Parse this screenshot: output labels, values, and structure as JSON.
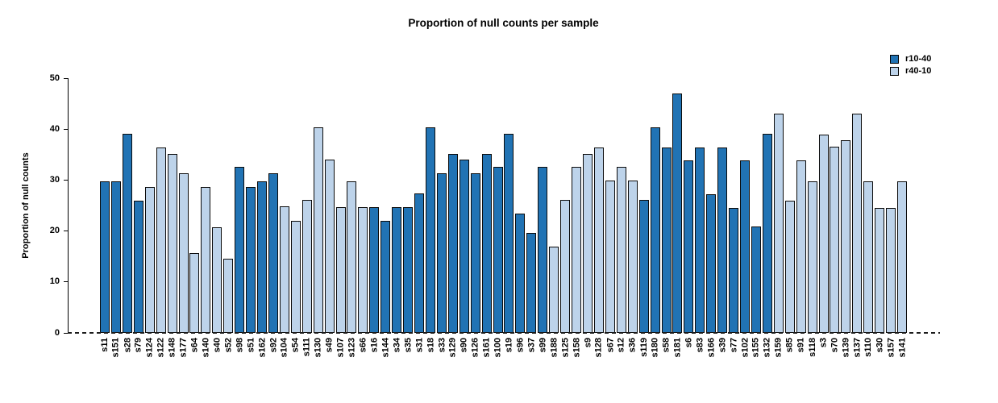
{
  "chart_data": {
    "type": "bar",
    "title": "Proportion of null counts per sample",
    "xlabel": "",
    "ylabel": "Proportion of null counts",
    "ylim": [
      0,
      50
    ],
    "yticks": [
      0,
      10,
      20,
      30,
      40,
      50
    ],
    "grid": false,
    "legend_position": "top-right",
    "legend": [
      {
        "name": "r10-40",
        "color": "#2173B4"
      },
      {
        "name": "r40-10",
        "color": "#BDD3EA"
      }
    ],
    "bars": [
      {
        "label": "s11",
        "value": 29.8,
        "series": "r10-40"
      },
      {
        "label": "s151",
        "value": 29.8,
        "series": "r10-40"
      },
      {
        "label": "s28",
        "value": 39.2,
        "series": "r10-40"
      },
      {
        "label": "s79",
        "value": 26.0,
        "series": "r10-40"
      },
      {
        "label": "s124",
        "value": 28.7,
        "series": "r40-10"
      },
      {
        "label": "s122",
        "value": 36.5,
        "series": "r40-10"
      },
      {
        "label": "s148",
        "value": 35.2,
        "series": "r40-10"
      },
      {
        "label": "s177",
        "value": 31.4,
        "series": "r40-10"
      },
      {
        "label": "s64",
        "value": 15.7,
        "series": "r40-10"
      },
      {
        "label": "s140",
        "value": 28.7,
        "series": "r40-10"
      },
      {
        "label": "s40",
        "value": 20.8,
        "series": "r40-10"
      },
      {
        "label": "s52",
        "value": 14.5,
        "series": "r40-10"
      },
      {
        "label": "s98",
        "value": 32.7,
        "series": "r10-40"
      },
      {
        "label": "s51",
        "value": 28.7,
        "series": "r10-40"
      },
      {
        "label": "s162",
        "value": 29.8,
        "series": "r10-40"
      },
      {
        "label": "s92",
        "value": 31.3,
        "series": "r10-40"
      },
      {
        "label": "s104",
        "value": 24.8,
        "series": "r40-10"
      },
      {
        "label": "s54",
        "value": 22.1,
        "series": "r40-10"
      },
      {
        "label": "s111",
        "value": 26.1,
        "series": "r40-10"
      },
      {
        "label": "s130",
        "value": 40.4,
        "series": "r40-10"
      },
      {
        "label": "s49",
        "value": 34.0,
        "series": "r40-10"
      },
      {
        "label": "s107",
        "value": 24.7,
        "series": "r40-10"
      },
      {
        "label": "s123",
        "value": 29.8,
        "series": "r40-10"
      },
      {
        "label": "s66",
        "value": 24.7,
        "series": "r40-10"
      },
      {
        "label": "s16",
        "value": 24.7,
        "series": "r10-40"
      },
      {
        "label": "s144",
        "value": 22.1,
        "series": "r10-40"
      },
      {
        "label": "s34",
        "value": 24.7,
        "series": "r10-40"
      },
      {
        "label": "s35",
        "value": 24.7,
        "series": "r10-40"
      },
      {
        "label": "s31",
        "value": 27.4,
        "series": "r10-40"
      },
      {
        "label": "s18",
        "value": 40.4,
        "series": "r10-40"
      },
      {
        "label": "s33",
        "value": 31.3,
        "series": "r10-40"
      },
      {
        "label": "s129",
        "value": 35.2,
        "series": "r10-40"
      },
      {
        "label": "s90",
        "value": 34.0,
        "series": "r10-40"
      },
      {
        "label": "s126",
        "value": 31.3,
        "series": "r10-40"
      },
      {
        "label": "s161",
        "value": 35.2,
        "series": "r10-40"
      },
      {
        "label": "s100",
        "value": 32.6,
        "series": "r10-40"
      },
      {
        "label": "s19",
        "value": 39.2,
        "series": "r10-40"
      },
      {
        "label": "s96",
        "value": 23.5,
        "series": "r10-40"
      },
      {
        "label": "s37",
        "value": 19.6,
        "series": "r10-40"
      },
      {
        "label": "s99",
        "value": 32.6,
        "series": "r10-40"
      },
      {
        "label": "s188",
        "value": 16.9,
        "series": "r40-10"
      },
      {
        "label": "s125",
        "value": 26.1,
        "series": "r40-10"
      },
      {
        "label": "s158",
        "value": 32.6,
        "series": "r40-10"
      },
      {
        "label": "s9",
        "value": 35.2,
        "series": "r40-10"
      },
      {
        "label": "s128",
        "value": 36.5,
        "series": "r40-10"
      },
      {
        "label": "s67",
        "value": 29.9,
        "series": "r40-10"
      },
      {
        "label": "s12",
        "value": 32.6,
        "series": "r40-10"
      },
      {
        "label": "s36",
        "value": 29.9,
        "series": "r40-10"
      },
      {
        "label": "s119",
        "value": 26.1,
        "series": "r10-40"
      },
      {
        "label": "s180",
        "value": 40.4,
        "series": "r10-40"
      },
      {
        "label": "s58",
        "value": 36.5,
        "series": "r10-40"
      },
      {
        "label": "s181",
        "value": 47.0,
        "series": "r10-40"
      },
      {
        "label": "s6",
        "value": 33.9,
        "series": "r10-40"
      },
      {
        "label": "s83",
        "value": 36.5,
        "series": "r10-40"
      },
      {
        "label": "s166",
        "value": 27.3,
        "series": "r10-40"
      },
      {
        "label": "s39",
        "value": 36.5,
        "series": "r10-40"
      },
      {
        "label": "s77",
        "value": 24.6,
        "series": "r10-40"
      },
      {
        "label": "s102",
        "value": 33.9,
        "series": "r10-40"
      },
      {
        "label": "s155",
        "value": 20.9,
        "series": "r10-40"
      },
      {
        "label": "s132",
        "value": 39.1,
        "series": "r10-40"
      },
      {
        "label": "s159",
        "value": 43.1,
        "series": "r40-10"
      },
      {
        "label": "s85",
        "value": 26.0,
        "series": "r40-10"
      },
      {
        "label": "s91",
        "value": 33.9,
        "series": "r40-10"
      },
      {
        "label": "s118",
        "value": 29.8,
        "series": "r40-10"
      },
      {
        "label": "s3",
        "value": 39.0,
        "series": "r40-10"
      },
      {
        "label": "s70",
        "value": 36.6,
        "series": "r40-10"
      },
      {
        "label": "s139",
        "value": 37.8,
        "series": "r40-10"
      },
      {
        "label": "s137",
        "value": 43.1,
        "series": "r40-10"
      },
      {
        "label": "s110",
        "value": 29.8,
        "series": "r40-10"
      },
      {
        "label": "s30",
        "value": 24.6,
        "series": "r40-10"
      },
      {
        "label": "s157",
        "value": 24.6,
        "series": "r40-10"
      },
      {
        "label": "s141",
        "value": 29.8,
        "series": "r40-10"
      }
    ]
  }
}
